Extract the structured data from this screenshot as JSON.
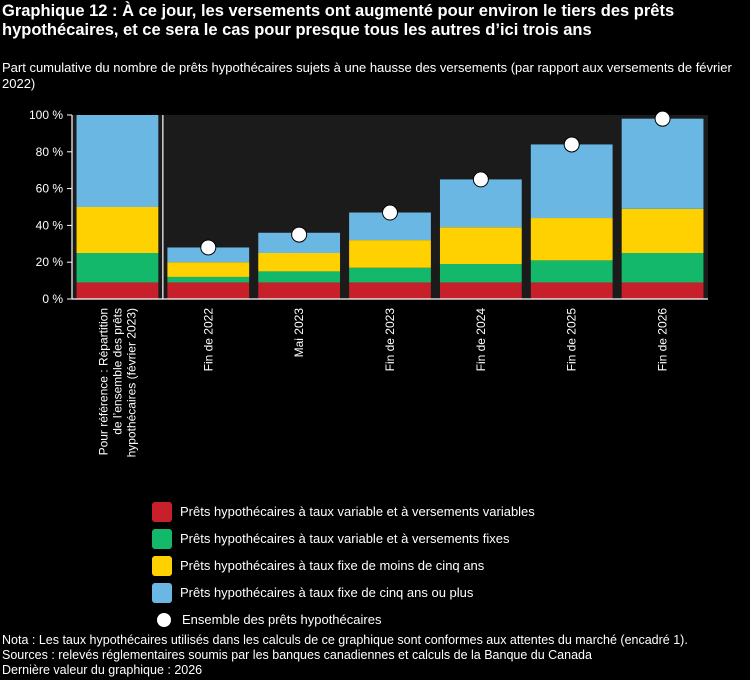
{
  "title": "Graphique 12 : À ce jour, les versements ont augmenté pour environ le tiers des prêts hypothécaires, et ce sera le cas pour presque tous les autres d’ici trois ans",
  "subtitle": "Part cumulative du nombre de prêts hypothécaires sujets à une hausse des versements (par rapport aux versements de février 2022)",
  "colors": {
    "variable_variable": "#c8202a",
    "variable_fixed": "#14b86a",
    "fixed_short": "#ffd100",
    "fixed_long": "#6ab7e3",
    "total_marker": "#ffffff"
  },
  "chart_data": {
    "type": "bar",
    "stacked": true,
    "categories": [
      "Pour référence : Répartition de l’ensemble des prêts hypothécaires (février 2023)",
      "Fin de 2022",
      "Mai 2023",
      "Fin de 2023",
      "Fin de 2024",
      "Fin de 2025",
      "Fin de 2026"
    ],
    "category_lines": [
      [
        "Pour référence : Répartition",
        "de l’ensemble des prêts",
        "hypothécaires (février 2023)"
      ],
      [
        "Fin de 2022"
      ],
      [
        "Mai 2023"
      ],
      [
        "Fin de 2023"
      ],
      [
        "Fin de 2024"
      ],
      [
        "Fin de 2025"
      ],
      [
        "Fin de 2026"
      ]
    ],
    "series": [
      {
        "name": "Prêts hypothécaires à taux variable et à versements variables",
        "color_key": "variable_variable",
        "values": [
          9,
          9,
          9,
          9,
          9,
          9,
          9
        ]
      },
      {
        "name": "Prêts hypothécaires à taux variable et à versements fixes",
        "color_key": "variable_fixed",
        "values": [
          16,
          3,
          6,
          8,
          10,
          12,
          16
        ]
      },
      {
        "name": "Prêts hypothécaires à taux fixe de moins de cinq ans",
        "color_key": "fixed_short",
        "values": [
          25,
          8,
          10,
          15,
          20,
          23,
          24
        ]
      },
      {
        "name": "Prêts hypothécaires à taux fixe de cinq ans ou plus",
        "color_key": "fixed_long",
        "values": [
          50,
          8,
          11,
          15,
          26,
          40,
          49
        ]
      }
    ],
    "markers": {
      "name": "Ensemble des prêts hypothécaires",
      "values": [
        null,
        28,
        35,
        47,
        65,
        84,
        98
      ]
    },
    "ylim": [
      0,
      100
    ],
    "yticks": [
      0,
      20,
      40,
      60,
      80,
      100
    ],
    "ytick_suffix": " %",
    "grid": false,
    "legend_position": "bottom",
    "reference_separator_after": 0
  },
  "notes": [
    "Nota : Les taux hypothécaires utilisés dans les calculs de ce graphique sont conformes aux attentes du marché (encadré 1).",
    "Sources : relevés réglementaires soumis par les banques canadiennes et calculs de la Banque du Canada",
    "Dernière valeur du graphique : 2026"
  ]
}
